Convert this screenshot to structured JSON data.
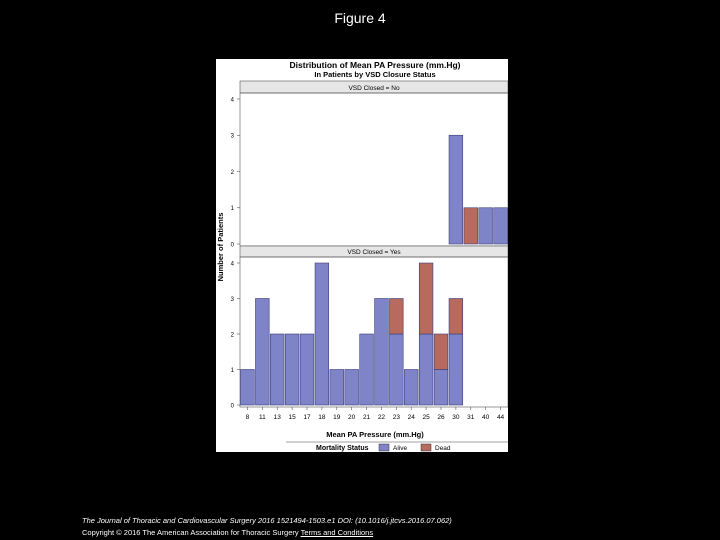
{
  "slide": {
    "title": "Figure 4",
    "citation": "The Journal of Thoracic and Cardiovascular Surgery 2016 1521494-1503.e1 DOI: (10.1016/j.jtcvs.2016.07.062)",
    "copyright": "Copyright © 2016 The American Association for Thoracic Surgery",
    "terms_link": "Terms and Conditions"
  },
  "colors": {
    "alive": "#7f83c8",
    "dead": "#b86a5e",
    "bar_stroke": "#3a3c7a",
    "panel_header": "#e6e6e6"
  },
  "chart_data": {
    "type": "bar",
    "stacked": true,
    "title": "Distribution of Mean PA Pressure (mm.Hg)",
    "subtitle": "In Patients by VSD Closure Status",
    "xlabel": "Mean PA Pressure (mm.Hg)",
    "ylabel": "Number of Patients",
    "categories": [
      "8",
      "11",
      "13",
      "15",
      "17",
      "18",
      "19",
      "20",
      "21",
      "22",
      "23",
      "24",
      "25",
      "26",
      "30",
      "31",
      "40",
      "44"
    ],
    "ylim": [
      0,
      4
    ],
    "yticks": [
      "0",
      "1",
      "2",
      "3",
      "4"
    ],
    "grid": false,
    "legend": {
      "title": "Mortality Status",
      "position": "bottom",
      "entries": [
        "Alive",
        "Dead"
      ]
    },
    "panels": [
      {
        "label": "VSD Closed = No",
        "series": [
          {
            "name": "Alive",
            "values": [
              0,
              0,
              0,
              0,
              0,
              0,
              0,
              0,
              0,
              0,
              0,
              0,
              0,
              0,
              3,
              0,
              1,
              1
            ]
          },
          {
            "name": "Dead",
            "values": [
              0,
              0,
              0,
              0,
              0,
              0,
              0,
              0,
              0,
              0,
              0,
              0,
              0,
              0,
              0,
              1,
              0,
              0
            ]
          }
        ]
      },
      {
        "label": "VSD Closed = Yes",
        "series": [
          {
            "name": "Alive",
            "values": [
              1,
              3,
              2,
              2,
              2,
              4,
              1,
              1,
              2,
              3,
              2,
              1,
              2,
              1,
              2,
              0,
              0,
              0
            ]
          },
          {
            "name": "Dead",
            "values": [
              0,
              0,
              0,
              0,
              0,
              0,
              0,
              0,
              0,
              0,
              1,
              0,
              2,
              1,
              1,
              0,
              0,
              0
            ]
          }
        ]
      }
    ]
  }
}
